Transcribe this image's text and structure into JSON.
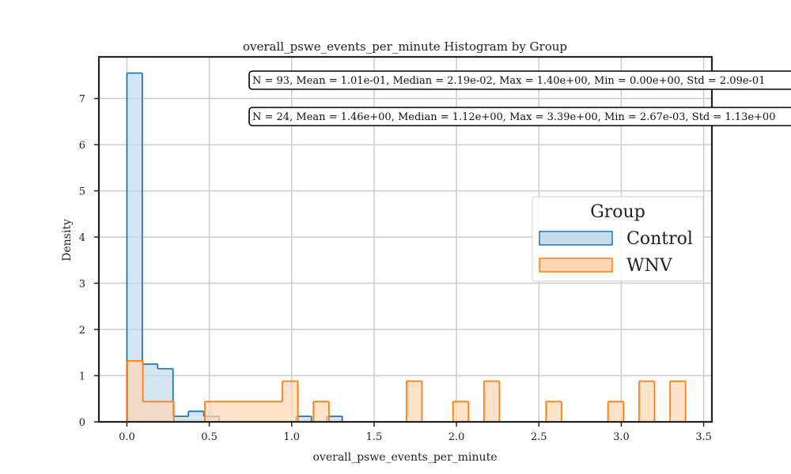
{
  "chart_data": {
    "type": "bar",
    "title": "overall_pswe_events_per_minute Histogram by Group",
    "xlabel": "overall_pswe_events_per_minute",
    "ylabel": "Density",
    "xlim": [
      -0.17,
      3.55
    ],
    "ylim": [
      0,
      7.9
    ],
    "xticks": [
      0.0,
      0.5,
      1.0,
      1.5,
      2.0,
      2.5,
      3.0,
      3.5
    ],
    "xtick_labels": [
      "0.0",
      "0.5",
      "1.0",
      "1.5",
      "2.0",
      "2.5",
      "3.0",
      "3.5"
    ],
    "yticks": [
      0,
      1,
      2,
      3,
      4,
      5,
      6,
      7
    ],
    "ytick_labels": [
      "0",
      "1",
      "2",
      "3",
      "4",
      "5",
      "6",
      "7"
    ],
    "grid": true,
    "legend": {
      "title": "Group",
      "placement": "center-right",
      "entries": [
        "Control",
        "WNV"
      ]
    },
    "series": [
      {
        "name": "Control",
        "color": "#1f77b4",
        "fill": "#c6dbee",
        "bin_edges": [
          0.0,
          0.0933,
          0.1867,
          0.28,
          0.3733,
          0.4667,
          0.56,
          0.6533,
          0.7467,
          0.84,
          0.9333,
          1.0267,
          1.12,
          1.2133,
          1.3067,
          1.4
        ],
        "values": [
          7.55,
          1.25,
          1.15,
          0.12,
          0.23,
          0.12,
          0,
          0,
          0,
          0,
          0,
          0.12,
          0,
          0.12,
          0
        ]
      },
      {
        "name": "WNV",
        "color": "#ff7f0e",
        "fill": "#ffd7b5",
        "bin_edges": [
          0.0027,
          0.0968,
          0.1909,
          0.285,
          0.3791,
          0.4732,
          0.5673,
          0.6614,
          0.7555,
          0.8496,
          0.9437,
          1.0378,
          1.1319,
          1.226,
          1.3201,
          1.4142,
          1.5083,
          1.6024,
          1.6965,
          1.7906,
          1.8847,
          1.9788,
          2.0729,
          2.167,
          2.2611,
          2.3552,
          2.4493,
          2.5434,
          2.6375,
          2.7316,
          2.8257,
          2.9198,
          3.0139,
          3.108,
          3.2021,
          3.2962,
          3.39
        ],
        "values": [
          1.32,
          0.44,
          0.44,
          0,
          0,
          0.44,
          0.44,
          0.44,
          0.44,
          0.44,
          0.88,
          0,
          0.44,
          0,
          0,
          0,
          0,
          0,
          0.88,
          0,
          0,
          0.44,
          0,
          0.88,
          0,
          0,
          0,
          0.44,
          0,
          0,
          0,
          0.44,
          0,
          0.88,
          0,
          0.88
        ]
      }
    ],
    "annotations": [
      "N = 93, Mean = 1.01e-01, Median = 2.19e-02, Max = 1.40e+00, Min = 0.00e+00, Std = 2.09e-01",
      "N = 24, Mean = 1.46e+00, Median = 1.12e+00, Max = 3.39e+00, Min = 2.67e-03, Std = 1.13e+00"
    ]
  }
}
